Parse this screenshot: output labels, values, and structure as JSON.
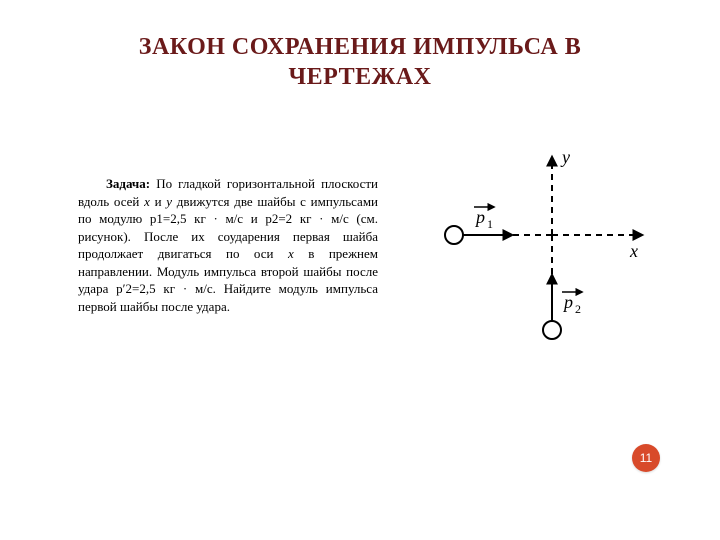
{
  "title": "ЗАКОН СОХРАНЕНИЯ ИМПУЛЬСА В ЧЕРТЕЖАХ",
  "title_color": "#6a1a1a",
  "problem": {
    "lead": "Задача:",
    "text_before_x": "По гладкой горизонтальной плоскости вдоль осей ",
    "x_var": "x",
    "text_between_xy": " и ",
    "y_var": "y",
    "text_after_y": " движутся две шайбы с импульсами по модулю p1=2,5 кг · м/с и p2=2 кг · м/с (см. рисунок). После их соударения первая шайба продолжает двигаться по оси ",
    "x_var2": "x",
    "text_tail": " в прежнем направлении. Модуль импульса второй шайбы после удара p′2=2,5 кг · м/с. Найдите модуль импульса первой шайбы после удара."
  },
  "diagram": {
    "axis_y_label": "y",
    "axis_x_label": "x",
    "p1_label": "p₁",
    "p2_label": "p₂",
    "axis_color": "#000000",
    "stroke_width": 2,
    "dash": "6 5",
    "puck_radius": 9,
    "puck_fill": "#ffffff",
    "puck_stroke": "#000000",
    "label_fontsize": 18
  },
  "page_number": "11",
  "badge_color": "#d84a2a"
}
